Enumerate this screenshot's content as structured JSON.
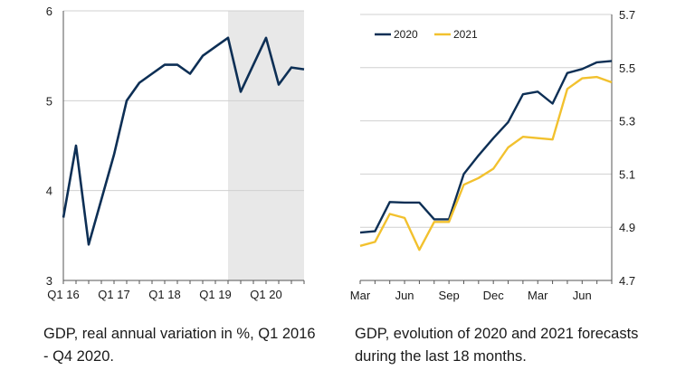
{
  "chart_data": [
    {
      "type": "line",
      "caption": "GDP, real annual variation in %, Q1 2016 - Q4 2020.",
      "x_ticks": [
        "Q1 16",
        "Q1 17",
        "Q1 18",
        "Q1 19",
        "Q1 20"
      ],
      "y_ticks": [
        "3",
        "4",
        "5",
        "6"
      ],
      "ylim": [
        3,
        6
      ],
      "grid": "horizontal",
      "highlight_range": {
        "from_index": 13,
        "to_index": 19
      },
      "colors": {
        "line": "#0d2f55",
        "grid": "#d0d0d0",
        "shade": "#e8e8e8"
      },
      "series": [
        {
          "values": [
            3.7,
            4.5,
            3.4,
            3.9,
            4.4,
            5.0,
            5.2,
            5.3,
            5.4,
            5.4,
            5.3,
            5.5,
            5.6,
            5.7,
            5.1,
            5.4,
            5.7,
            5.18,
            5.37,
            5.35
          ]
        }
      ]
    },
    {
      "type": "line",
      "caption": "GDP, evolution of 2020 and 2021 forecasts during the last 18 months.",
      "x_ticks": [
        "Mar",
        "Jun",
        "Sep",
        "Dec",
        "Mar",
        "Jun"
      ],
      "y_ticks": [
        "4.7",
        "4.9",
        "5.1",
        "5.3",
        "5.5",
        "5.7"
      ],
      "ylim": [
        4.7,
        5.7
      ],
      "grid": "horizontal",
      "legend_position": "top-left",
      "series": [
        {
          "name": "2020",
          "color": "#0d2f55",
          "values": [
            4.88,
            4.885,
            4.995,
            4.993,
            4.993,
            4.93,
            4.93,
            5.1,
            5.17,
            5.235,
            5.295,
            5.4,
            5.41,
            5.365,
            5.48,
            5.495,
            5.52,
            5.525
          ]
        },
        {
          "name": "2021",
          "color": "#f2c12e",
          "values": [
            4.83,
            4.845,
            4.95,
            4.935,
            4.815,
            4.92,
            4.92,
            5.06,
            5.085,
            5.12,
            5.2,
            5.24,
            5.235,
            5.23,
            5.42,
            5.46,
            5.465,
            5.445
          ]
        }
      ]
    }
  ]
}
